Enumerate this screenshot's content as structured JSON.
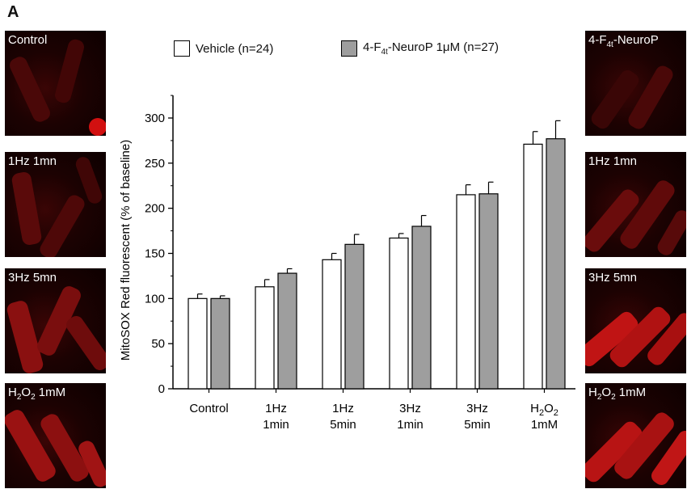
{
  "panel_letter": "A",
  "left_images": [
    {
      "label": "Control"
    },
    {
      "label": "1Hz 1mn"
    },
    {
      "label": "3Hz 5mn"
    },
    {
      "label": "H2O2 1mM"
    }
  ],
  "right_images": [
    {
      "label": "4-F4t-NeuroP"
    },
    {
      "label": "1Hz 1mn"
    },
    {
      "label": "3Hz 5mn"
    },
    {
      "label": "H2O2 1mM"
    }
  ],
  "colors": {
    "vehicle": "#ffffff",
    "neurop": "#9e9e9e",
    "axis": "#000000"
  },
  "chart_data": {
    "type": "bar",
    "ylabel": "MitoSOX Red fluorescent (% of baseline)",
    "xlabel": "",
    "ylim": [
      0,
      325
    ],
    "yticks": [
      0,
      50,
      100,
      150,
      200,
      250,
      300
    ],
    "categories": [
      [
        "Control"
      ],
      [
        "1Hz",
        "1min"
      ],
      [
        "1Hz",
        "5min"
      ],
      [
        "3Hz",
        "1min"
      ],
      [
        "3Hz",
        "5min"
      ],
      [
        "H2O2",
        "1mM"
      ]
    ],
    "series": [
      {
        "name": "Vehicle (n=24)",
        "values": [
          100,
          113,
          143,
          167,
          215,
          271
        ],
        "errors": [
          5,
          8,
          7,
          5,
          11,
          14
        ]
      },
      {
        "name": "4-F4t-NeuroP 1μM (n=27)",
        "values": [
          100,
          128,
          160,
          180,
          216,
          277
        ],
        "errors": [
          3,
          5,
          11,
          12,
          13,
          20
        ]
      }
    ],
    "legend": "top"
  }
}
